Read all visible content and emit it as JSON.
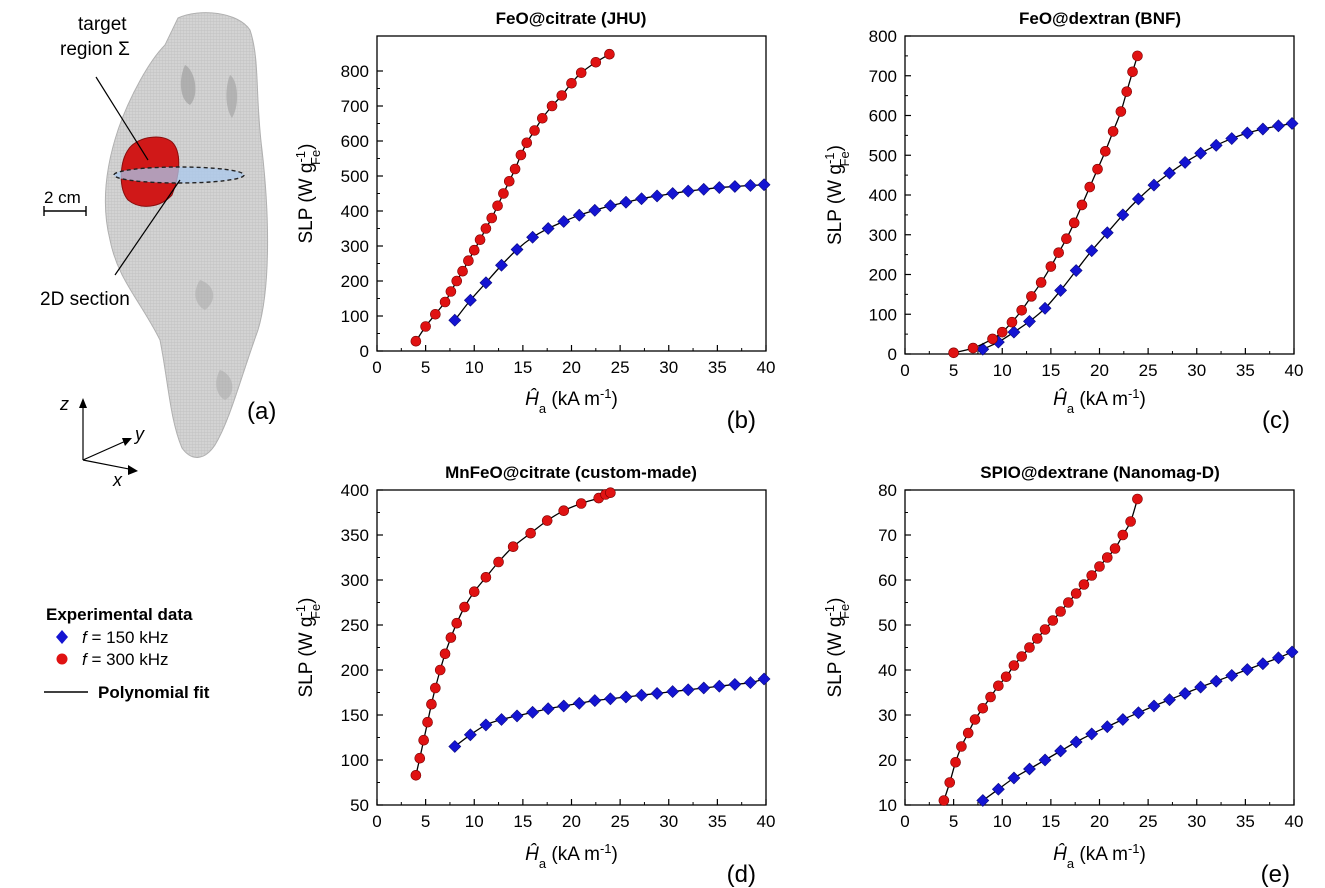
{
  "figure": {
    "panel_a": {
      "target_label_line1": "target",
      "target_label_line2": "region Σ",
      "scale_label": "2 cm",
      "section_label": "2D section",
      "axis_z": "z",
      "axis_y": "y",
      "axis_x": "x",
      "panel_label": "(a)"
    },
    "legend": {
      "title": "Experimental data",
      "series1_var": "f",
      "series1_text": " = 150 kHz",
      "series2_var": "f",
      "series2_text": " = 300 kHz",
      "fit_label": "Polynomial fit"
    },
    "colors": {
      "blue": "#1414d2",
      "red": "#e01212",
      "fit": "#000000"
    }
  },
  "chart_data": [
    {
      "type": "scatter",
      "panel_label": "(b)",
      "title": "FeO@citrate (JHU)",
      "ylabel_main": "SLP (W g",
      "ylabel_sub": "Fe",
      "ylabel_sup": "-1",
      "ylabel_close": ")",
      "xlabel_main": "Ĥ",
      "xlabel_sub": "a",
      "xlabel_rest": " (kA m",
      "xlabel_sup": "-1",
      "xlabel_close": ")",
      "xlim": [
        0,
        40
      ],
      "ylim": [
        0,
        900
      ],
      "xticks": [
        0,
        5,
        10,
        15,
        20,
        25,
        30,
        35,
        40
      ],
      "yticks": [
        0,
        100,
        200,
        300,
        400,
        500,
        600,
        700,
        800
      ],
      "series": [
        {
          "name": "f = 150 kHz",
          "marker": "diamond",
          "color": "#1414d2",
          "x": [
            8,
            9.6,
            11.2,
            12.8,
            14.4,
            16,
            17.6,
            19.2,
            20.8,
            22.4,
            24,
            25.6,
            27.2,
            28.8,
            30.4,
            32,
            33.6,
            35.2,
            36.8,
            38.4,
            39.8
          ],
          "y": [
            88,
            145,
            195,
            245,
            290,
            325,
            350,
            370,
            388,
            402,
            415,
            425,
            435,
            443,
            450,
            457,
            462,
            467,
            470,
            473,
            475
          ]
        },
        {
          "name": "f = 300 kHz",
          "marker": "circle",
          "color": "#e01212",
          "x": [
            4,
            5,
            6,
            7,
            7.6,
            8.2,
            8.8,
            9.4,
            10,
            10.6,
            11.2,
            11.8,
            12.4,
            13,
            13.6,
            14.2,
            14.8,
            15.4,
            16.2,
            17,
            18,
            19,
            20,
            21,
            22.5,
            23.9
          ],
          "y": [
            28,
            70,
            105,
            140,
            170,
            200,
            228,
            258,
            288,
            318,
            350,
            380,
            415,
            450,
            485,
            520,
            560,
            595,
            630,
            665,
            700,
            730,
            765,
            795,
            825,
            848
          ]
        }
      ]
    },
    {
      "type": "scatter",
      "panel_label": "(c)",
      "title": "FeO@dextran (BNF)",
      "ylabel_main": "SLP (W g",
      "ylabel_sub": "Fe",
      "ylabel_sup": "-1",
      "ylabel_close": ")",
      "xlabel_main": "Ĥ",
      "xlabel_sub": "a",
      "xlabel_rest": " (kA m",
      "xlabel_sup": "-1",
      "xlabel_close": ")",
      "xlim": [
        0,
        40
      ],
      "ylim": [
        0,
        800
      ],
      "xticks": [
        0,
        5,
        10,
        15,
        20,
        25,
        30,
        35,
        40
      ],
      "yticks": [
        0,
        100,
        200,
        300,
        400,
        500,
        600,
        700,
        800
      ],
      "series": [
        {
          "name": "f = 150 kHz",
          "marker": "diamond",
          "color": "#1414d2",
          "x": [
            8,
            9.6,
            11.2,
            12.8,
            14.4,
            16,
            17.6,
            19.2,
            20.8,
            22.4,
            24,
            25.6,
            27.2,
            28.8,
            30.4,
            32,
            33.6,
            35.2,
            36.8,
            38.4,
            39.8
          ],
          "y": [
            12,
            30,
            55,
            82,
            115,
            160,
            210,
            260,
            305,
            350,
            390,
            425,
            455,
            482,
            505,
            525,
            542,
            556,
            566,
            574,
            580
          ]
        },
        {
          "name": "f = 300 kHz",
          "marker": "circle",
          "color": "#e01212",
          "x": [
            5,
            7,
            9,
            10,
            11,
            12,
            13,
            14,
            15,
            15.8,
            16.6,
            17.4,
            18.2,
            19,
            19.8,
            20.6,
            21.4,
            22.2,
            22.8,
            23.4,
            23.9
          ],
          "y": [
            3,
            15,
            38,
            55,
            80,
            110,
            145,
            180,
            220,
            255,
            290,
            330,
            375,
            420,
            465,
            510,
            560,
            610,
            660,
            710,
            750
          ]
        }
      ]
    },
    {
      "type": "scatter",
      "panel_label": "(d)",
      "title": "MnFeO@citrate (custom-made)",
      "ylabel_main": "SLP (W g",
      "ylabel_sub": "Fe",
      "ylabel_sup": "-1",
      "ylabel_close": ")",
      "xlabel_main": "Ĥ",
      "xlabel_sub": "a",
      "xlabel_rest": " (kA m",
      "xlabel_sup": "-1",
      "xlabel_close": ")",
      "xlim": [
        0,
        40
      ],
      "ylim": [
        50,
        400
      ],
      "xticks": [
        0,
        5,
        10,
        15,
        20,
        25,
        30,
        35,
        40
      ],
      "yticks": [
        50,
        100,
        150,
        200,
        250,
        300,
        350,
        400
      ],
      "series": [
        {
          "name": "f = 150 kHz",
          "marker": "diamond",
          "color": "#1414d2",
          "x": [
            8,
            9.6,
            11.2,
            12.8,
            14.4,
            16,
            17.6,
            19.2,
            20.8,
            22.4,
            24,
            25.6,
            27.2,
            28.8,
            30.4,
            32,
            33.6,
            35.2,
            36.8,
            38.4,
            39.8
          ],
          "y": [
            115,
            128,
            139,
            145,
            149,
            153,
            157,
            160,
            163,
            166,
            168,
            170,
            172,
            174,
            176,
            178,
            180,
            182,
            184,
            186,
            190
          ]
        },
        {
          "name": "f = 300 kHz",
          "marker": "circle",
          "color": "#e01212",
          "x": [
            4,
            4.4,
            4.8,
            5.2,
            5.6,
            6,
            6.5,
            7,
            7.6,
            8.2,
            9,
            10,
            11.2,
            12.5,
            14,
            15.8,
            17.5,
            19.2,
            21,
            22.8,
            23.5,
            24
          ],
          "y": [
            83,
            102,
            122,
            142,
            162,
            180,
            200,
            218,
            236,
            252,
            270,
            287,
            303,
            320,
            337,
            352,
            366,
            377,
            385,
            391,
            395,
            397
          ]
        }
      ]
    },
    {
      "type": "scatter",
      "panel_label": "(e)",
      "title": "SPIO@dextrane (Nanomag-D)",
      "ylabel_main": "SLP (W g",
      "ylabel_sub": "Fe",
      "ylabel_sup": "-1",
      "ylabel_close": ")",
      "xlabel_main": "Ĥ",
      "xlabel_sub": "a",
      "xlabel_rest": " (kA m",
      "xlabel_sup": "-1",
      "xlabel_close": ")",
      "xlim": [
        0,
        40
      ],
      "ylim": [
        10,
        80
      ],
      "xticks": [
        0,
        5,
        10,
        15,
        20,
        25,
        30,
        35,
        40
      ],
      "yticks": [
        10,
        20,
        30,
        40,
        50,
        60,
        70,
        80
      ],
      "series": [
        {
          "name": "f = 150 kHz",
          "marker": "diamond",
          "color": "#1414d2",
          "x": [
            8,
            9.6,
            11.2,
            12.8,
            14.4,
            16,
            17.6,
            19.2,
            20.8,
            22.4,
            24,
            25.6,
            27.2,
            28.8,
            30.4,
            32,
            33.6,
            35.2,
            36.8,
            38.4,
            39.8
          ],
          "y": [
            11,
            13.5,
            16,
            18,
            20,
            22,
            24,
            25.8,
            27.4,
            29,
            30.5,
            32,
            33.4,
            34.8,
            36.2,
            37.5,
            38.8,
            40.1,
            41.4,
            42.7,
            44
          ]
        },
        {
          "name": "f = 300 kHz",
          "marker": "circle",
          "color": "#e01212",
          "x": [
            4,
            4.6,
            5.2,
            5.8,
            6.5,
            7.2,
            8,
            8.8,
            9.6,
            10.4,
            11.2,
            12,
            12.8,
            13.6,
            14.4,
            15.2,
            16,
            16.8,
            17.6,
            18.4,
            19.2,
            20,
            20.8,
            21.6,
            22.4,
            23.2,
            23.9
          ],
          "y": [
            11,
            15,
            19.5,
            23,
            26,
            29,
            31.5,
            34,
            36.5,
            38.5,
            41,
            43,
            45,
            47,
            49,
            51,
            53,
            55,
            57,
            59,
            61,
            63,
            65,
            67,
            70,
            73,
            78
          ]
        }
      ]
    }
  ]
}
